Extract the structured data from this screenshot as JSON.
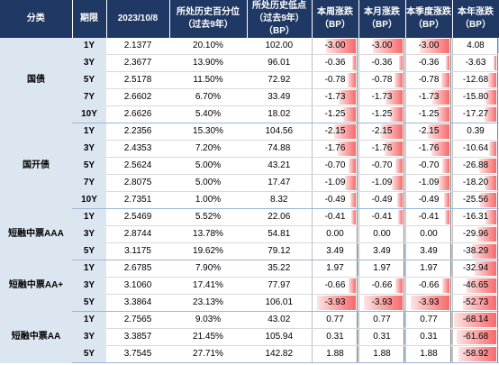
{
  "headers": [
    "分类",
    "期限",
    "2023/10/8",
    "所处历史百分位\n（过去9年）",
    "所处历史低点\n（过去9年）\n（BP）",
    "本周涨跌\n（BP）",
    "本月涨跌\n（BP）",
    "本季度涨跌\n（BP）",
    "本年涨跌\n（BP）"
  ],
  "colors": {
    "header_bg": "#1f3864",
    "category_bg": "#dce6f1",
    "negative_bar": "#f8696b",
    "positive_bar": "#5b9bd5"
  },
  "chart_data": {
    "type": "table",
    "columns": [
      "分类",
      "期限",
      "2023/10/8",
      "所处历史百分位（过去9年）",
      "所处历史低点（过去9年）（BP）",
      "本周涨跌（BP）",
      "本月涨跌（BP）",
      "本季度涨跌（BP）",
      "本年涨跌（BP）"
    ],
    "groups": [
      {
        "category": "国债",
        "rows": [
          {
            "tenor": "1Y",
            "yield": "2.1377",
            "percentile": "20.10%",
            "low": "102.00",
            "week": "-3.00",
            "month": "-3.00",
            "quarter": "-3.00",
            "year": "4.08"
          },
          {
            "tenor": "3Y",
            "yield": "2.3677",
            "percentile": "13.90%",
            "low": "96.01",
            "week": "-0.36",
            "month": "-0.36",
            "quarter": "-0.36",
            "year": "-3.63"
          },
          {
            "tenor": "5Y",
            "yield": "2.5178",
            "percentile": "11.50%",
            "low": "72.92",
            "week": "-0.78",
            "month": "-0.78",
            "quarter": "-0.78",
            "year": "-12.68"
          },
          {
            "tenor": "7Y",
            "yield": "2.6602",
            "percentile": "6.70%",
            "low": "33.49",
            "week": "-1.73",
            "month": "-1.73",
            "quarter": "-1.73",
            "year": "-15.80"
          },
          {
            "tenor": "10Y",
            "yield": "2.6626",
            "percentile": "5.40%",
            "low": "18.02",
            "week": "-1.25",
            "month": "-1.25",
            "quarter": "-1.25",
            "year": "-17.27"
          }
        ]
      },
      {
        "category": "国开债",
        "rows": [
          {
            "tenor": "1Y",
            "yield": "2.2356",
            "percentile": "15.30%",
            "low": "104.56",
            "week": "-2.15",
            "month": "-2.15",
            "quarter": "-2.15",
            "year": "0.39"
          },
          {
            "tenor": "3Y",
            "yield": "2.4353",
            "percentile": "7.20%",
            "low": "74.88",
            "week": "-1.76",
            "month": "-1.76",
            "quarter": "-1.76",
            "year": "-10.64"
          },
          {
            "tenor": "5Y",
            "yield": "2.5624",
            "percentile": "5.00%",
            "low": "43.21",
            "week": "-0.70",
            "month": "-0.70",
            "quarter": "-0.70",
            "year": "-26.88"
          },
          {
            "tenor": "7Y",
            "yield": "2.8075",
            "percentile": "5.00%",
            "low": "17.47",
            "week": "-1.09",
            "month": "-1.09",
            "quarter": "-1.09",
            "year": "-18.20"
          },
          {
            "tenor": "10Y",
            "yield": "2.7351",
            "percentile": "1.00%",
            "low": "8.32",
            "week": "-0.49",
            "month": "-0.49",
            "quarter": "-0.49",
            "year": "-25.56"
          }
        ]
      },
      {
        "category": "短融中票AAA",
        "rows": [
          {
            "tenor": "1Y",
            "yield": "2.5469",
            "percentile": "5.52%",
            "low": "22.06",
            "week": "-0.41",
            "month": "-0.41",
            "quarter": "-0.41",
            "year": "-16.31"
          },
          {
            "tenor": "3Y",
            "yield": "2.8744",
            "percentile": "13.78%",
            "low": "54.81",
            "week": "0.00",
            "month": "0.00",
            "quarter": "0.00",
            "year": "-29.96"
          },
          {
            "tenor": "5Y",
            "yield": "3.1175",
            "percentile": "19.62%",
            "low": "79.12",
            "week": "3.49",
            "month": "3.49",
            "quarter": "3.49",
            "year": "-38.29"
          }
        ]
      },
      {
        "category": "短融中票AA+",
        "rows": [
          {
            "tenor": "1Y",
            "yield": "2.6785",
            "percentile": "7.90%",
            "low": "35.22",
            "week": "1.97",
            "month": "1.97",
            "quarter": "1.97",
            "year": "-32.94"
          },
          {
            "tenor": "3Y",
            "yield": "3.1060",
            "percentile": "17.41%",
            "low": "77.97",
            "week": "-0.66",
            "month": "-0.66",
            "quarter": "-0.66",
            "year": "-46.65"
          },
          {
            "tenor": "5Y",
            "yield": "3.3864",
            "percentile": "23.13%",
            "low": "106.01",
            "week": "-3.93",
            "month": "-3.93",
            "quarter": "-3.93",
            "year": "-52.73"
          }
        ]
      },
      {
        "category": "短融中票AA",
        "rows": [
          {
            "tenor": "1Y",
            "yield": "2.7565",
            "percentile": "9.03%",
            "low": "43.02",
            "week": "0.77",
            "month": "0.77",
            "quarter": "0.77",
            "year": "-68.14"
          },
          {
            "tenor": "3Y",
            "yield": "3.3857",
            "percentile": "21.45%",
            "low": "105.94",
            "week": "0.31",
            "month": "0.31",
            "quarter": "0.31",
            "year": "-61.68"
          },
          {
            "tenor": "5Y",
            "yield": "3.7545",
            "percentile": "27.71%",
            "low": "142.82",
            "week": "1.88",
            "month": "1.88",
            "quarter": "1.88",
            "year": "-58.92"
          }
        ]
      }
    ]
  }
}
